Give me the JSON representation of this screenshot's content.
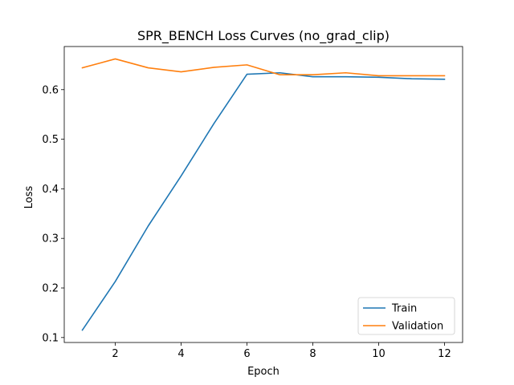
{
  "chart_data": {
    "type": "line",
    "title": "SPR_BENCH Loss Curves (no_grad_clip)",
    "xlabel": "Epoch",
    "ylabel": "Loss",
    "xlim": [
      0.45,
      12.55
    ],
    "ylim": [
      0.09,
      0.687
    ],
    "xticks": [
      2,
      4,
      6,
      8,
      10,
      12
    ],
    "yticks": [
      0.1,
      0.2,
      0.3,
      0.4,
      0.5,
      0.6
    ],
    "ytick_labels": [
      "0.1",
      "0.2",
      "0.3",
      "0.4",
      "0.5",
      "0.6"
    ],
    "x": [
      1,
      2,
      3,
      4,
      5,
      6,
      7,
      8,
      9,
      10,
      11,
      12
    ],
    "series": [
      {
        "name": "Train",
        "color": "#1f77b4",
        "values": [
          0.115,
          0.213,
          0.325,
          0.426,
          0.532,
          0.631,
          0.634,
          0.626,
          0.626,
          0.625,
          0.622,
          0.621
        ]
      },
      {
        "name": "Validation",
        "color": "#ff7f0e",
        "values": [
          0.644,
          0.662,
          0.644,
          0.636,
          0.645,
          0.65,
          0.63,
          0.63,
          0.634,
          0.628,
          0.628,
          0.628
        ]
      }
    ],
    "grid": false,
    "legend_position": "lower-right"
  }
}
